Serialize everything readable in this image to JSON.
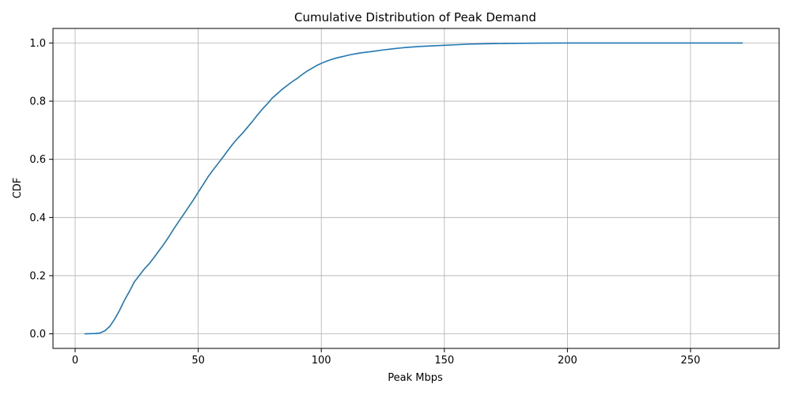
{
  "chart_data": {
    "type": "line",
    "title": "Cumulative Distribution of Peak Demand",
    "xlabel": "Peak Mbps",
    "ylabel": "CDF",
    "xlim": [
      -9,
      286
    ],
    "ylim": [
      -0.05,
      1.05
    ],
    "xticks": [
      0,
      50,
      100,
      150,
      200,
      250
    ],
    "yticks": [
      0.0,
      0.2,
      0.4,
      0.6,
      0.8,
      1.0
    ],
    "xtick_labels": [
      "0",
      "50",
      "100",
      "150",
      "200",
      "250"
    ],
    "ytick_labels": [
      "0.0",
      "0.2",
      "0.4",
      "0.6",
      "0.8",
      "1.0"
    ],
    "grid": true,
    "line_color": "#1f77b4",
    "series": [
      {
        "x": [
          4,
          8,
          10,
          12,
          14,
          16,
          18,
          20,
          22,
          24,
          26,
          28,
          30,
          32,
          34,
          36,
          38,
          40,
          42,
          44,
          46,
          48,
          50,
          52,
          54,
          56,
          58,
          60,
          62,
          64,
          66,
          68,
          70,
          72,
          74,
          76,
          78,
          80,
          82,
          84,
          86,
          88,
          90,
          92,
          94,
          96,
          98,
          100,
          102,
          104,
          106,
          108,
          110,
          112,
          114,
          116,
          118,
          120,
          125,
          130,
          135,
          140,
          145,
          150,
          155,
          160,
          170,
          180,
          190,
          200,
          220,
          240,
          260,
          271
        ],
        "y": [
          0.0,
          0.001,
          0.003,
          0.01,
          0.025,
          0.05,
          0.08,
          0.115,
          0.145,
          0.178,
          0.2,
          0.222,
          0.24,
          0.262,
          0.285,
          0.308,
          0.333,
          0.36,
          0.385,
          0.41,
          0.435,
          0.46,
          0.487,
          0.513,
          0.54,
          0.563,
          0.585,
          0.607,
          0.63,
          0.652,
          0.672,
          0.69,
          0.71,
          0.73,
          0.752,
          0.772,
          0.79,
          0.81,
          0.825,
          0.84,
          0.853,
          0.866,
          0.877,
          0.89,
          0.902,
          0.912,
          0.922,
          0.93,
          0.937,
          0.943,
          0.948,
          0.952,
          0.956,
          0.96,
          0.963,
          0.966,
          0.968,
          0.97,
          0.976,
          0.981,
          0.985,
          0.988,
          0.99,
          0.992,
          0.994,
          0.996,
          0.998,
          0.999,
          0.9995,
          1.0,
          1.0,
          1.0,
          1.0,
          1.0
        ]
      }
    ]
  }
}
